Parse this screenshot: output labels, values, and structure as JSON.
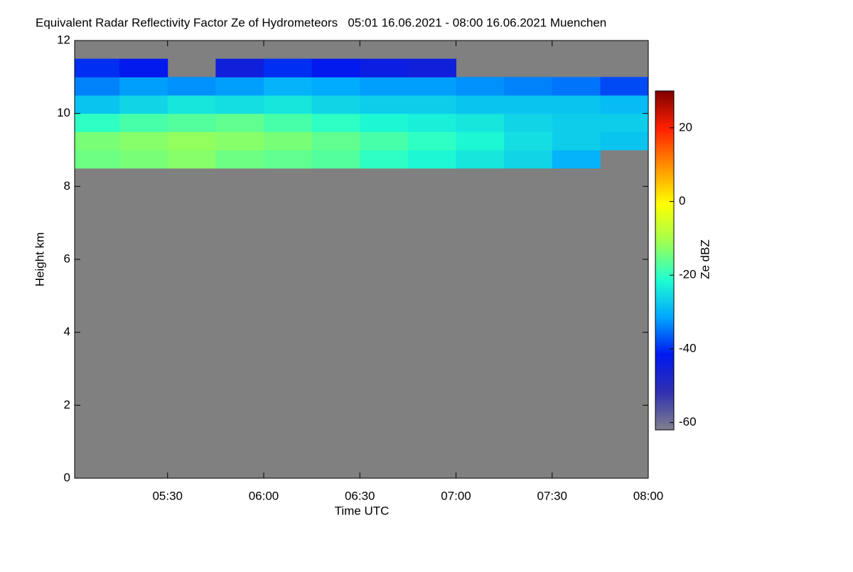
{
  "chart_data": {
    "type": "heatmap",
    "title": "Equivalent Radar Reflectivity Factor Ze of Hydrometeors   05:01 16.06.2021 - 08:00 16.06.2021 Muenchen",
    "xlabel": "Time UTC",
    "ylabel": "Height km",
    "colorbar_label": "Ze dBZ",
    "xlim": [
      "05:01",
      "08:00"
    ],
    "xticks": [
      "05:30",
      "06:00",
      "06:30",
      "07:00",
      "07:30",
      "08:00"
    ],
    "ylim": [
      0,
      12
    ],
    "yticks": [
      0,
      2,
      4,
      6,
      8,
      10,
      12
    ],
    "clim": [
      -62,
      30
    ],
    "cticks": [
      -60,
      -40,
      -20,
      0,
      20
    ],
    "colormap": [
      "#808090",
      "#3030b0",
      "#0018f0",
      "#00a8ff",
      "#20ffd0",
      "#a0ff50",
      "#ffff00",
      "#ff9000",
      "#ff2000",
      "#800000"
    ],
    "no_data_color": "#808080",
    "x": [
      "05:01",
      "05:15",
      "05:30",
      "05:45",
      "06:00",
      "06:15",
      "06:30",
      "06:45",
      "07:00",
      "07:15",
      "07:30",
      "07:45",
      "08:00"
    ],
    "y": [
      0,
      0.5,
      1,
      1.5,
      2,
      2.5,
      3,
      3.5,
      4,
      4.5,
      5,
      5.5,
      6,
      6.5,
      7,
      7.5,
      8,
      8.5,
      9,
      9.5,
      10,
      10.5,
      11,
      11.5,
      12
    ],
    "values": [
      [
        null,
        null,
        null,
        null,
        null,
        null,
        null,
        null,
        null,
        null,
        null,
        null
      ],
      [
        null,
        null,
        null,
        null,
        null,
        null,
        null,
        null,
        null,
        null,
        null,
        null
      ],
      [
        null,
        null,
        null,
        null,
        null,
        null,
        null,
        null,
        null,
        null,
        null,
        null
      ],
      [
        null,
        null,
        null,
        null,
        null,
        null,
        null,
        null,
        null,
        null,
        null,
        null
      ],
      [
        null,
        null,
        null,
        null,
        null,
        null,
        null,
        null,
        null,
        null,
        null,
        null
      ],
      [
        null,
        null,
        null,
        null,
        null,
        null,
        null,
        null,
        null,
        null,
        null,
        null
      ],
      [
        null,
        null,
        null,
        null,
        null,
        null,
        null,
        null,
        null,
        null,
        null,
        null
      ],
      [
        null,
        null,
        null,
        null,
        null,
        null,
        null,
        null,
        null,
        null,
        null,
        null
      ],
      [
        null,
        null,
        null,
        null,
        null,
        null,
        null,
        null,
        null,
        null,
        null,
        null
      ],
      [
        null,
        null,
        null,
        null,
        null,
        null,
        null,
        null,
        null,
        null,
        null,
        null
      ],
      [
        null,
        null,
        null,
        null,
        null,
        null,
        null,
        null,
        null,
        null,
        null,
        null
      ],
      [
        null,
        null,
        null,
        null,
        null,
        null,
        null,
        null,
        null,
        null,
        null,
        null
      ],
      [
        null,
        null,
        null,
        null,
        null,
        null,
        null,
        null,
        null,
        null,
        null,
        null
      ],
      [
        null,
        null,
        null,
        null,
        null,
        null,
        null,
        null,
        null,
        null,
        null,
        null
      ],
      [
        null,
        null,
        null,
        null,
        null,
        null,
        null,
        null,
        null,
        null,
        null,
        null
      ],
      [
        null,
        null,
        null,
        null,
        null,
        null,
        null,
        null,
        null,
        null,
        null,
        null
      ],
      [
        null,
        null,
        null,
        null,
        null,
        null,
        null,
        null,
        null,
        null,
        null,
        null
      ],
      [
        -15,
        -14,
        -13,
        -15,
        -16,
        -17,
        -20,
        -22,
        -24,
        -26,
        -30,
        null
      ],
      [
        -14,
        -13,
        -12,
        -13,
        -14,
        -16,
        -18,
        -20,
        -22,
        -25,
        -27,
        -28
      ],
      [
        -20,
        -18,
        -17,
        -16,
        -18,
        -20,
        -22,
        -23,
        -24,
        -26,
        -27,
        -27
      ],
      [
        -28,
        -26,
        -24,
        -25,
        -24,
        -26,
        -27,
        -27,
        -28,
        -28,
        -28,
        -29
      ],
      [
        -34,
        -32,
        -33,
        -32,
        -30,
        -31,
        -32,
        -32,
        -33,
        -34,
        -35,
        -38
      ],
      [
        -40,
        -42,
        null,
        -45,
        -40,
        -42,
        -44,
        -45,
        null,
        null,
        null,
        null
      ],
      [
        null,
        null,
        null,
        null,
        null,
        null,
        null,
        null,
        null,
        null,
        null,
        null
      ]
    ]
  }
}
